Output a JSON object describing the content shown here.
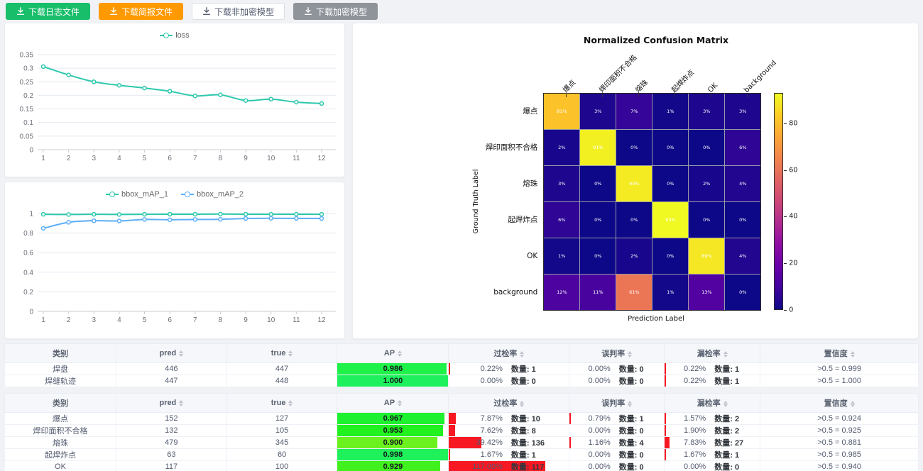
{
  "toolbar": {
    "buttons": [
      {
        "label": "下载日志文件",
        "style": "success",
        "icon": "download-icon"
      },
      {
        "label": "下载简报文件",
        "style": "warning",
        "icon": "download-icon"
      },
      {
        "label": "下载非加密模型",
        "style": "default",
        "icon": "download-icon"
      },
      {
        "label": "下载加密模型",
        "style": "gray",
        "icon": "download-icon"
      }
    ]
  },
  "colors": {
    "teal": "#2dc8ac",
    "blue": "#5caef7",
    "success": "#19be6b",
    "warning": "#ff9900",
    "gray_button": "#8f949b",
    "red_bar": "#f81823",
    "grid_line": "#e4e9f2",
    "axis_line": "#cccccc"
  },
  "chart_data": [
    {
      "type": "line",
      "name": "loss-chart",
      "legend": [
        "loss"
      ],
      "x": [
        1,
        2,
        3,
        4,
        5,
        6,
        7,
        8,
        9,
        10,
        11,
        12
      ],
      "series": [
        {
          "name": "loss",
          "color": "#2dc8ac",
          "values": [
            0.306,
            0.275,
            0.25,
            0.237,
            0.227,
            0.215,
            0.198,
            0.202,
            0.181,
            0.186,
            0.175,
            0.17
          ]
        }
      ],
      "y_ticks": [
        0,
        0.05,
        0.1,
        0.15,
        0.2,
        0.25,
        0.3,
        0.35
      ],
      "ylim": [
        0,
        0.35
      ],
      "grid": true,
      "legend_position": "top"
    },
    {
      "type": "line",
      "name": "map-chart",
      "legend": [
        "bbox_mAP_1",
        "bbox_mAP_2"
      ],
      "x": [
        1,
        2,
        3,
        4,
        5,
        6,
        7,
        8,
        9,
        10,
        11,
        12
      ],
      "series": [
        {
          "name": "bbox_mAP_1",
          "color": "#2dc8ac",
          "values": [
            0.992,
            0.99,
            0.992,
            0.99,
            0.992,
            0.993,
            0.993,
            0.994,
            0.993,
            0.992,
            0.993,
            0.992
          ]
        },
        {
          "name": "bbox_mAP_2",
          "color": "#5caef7",
          "values": [
            0.848,
            0.91,
            0.926,
            0.924,
            0.939,
            0.936,
            0.939,
            0.941,
            0.949,
            0.951,
            0.95,
            0.949
          ]
        }
      ],
      "y_ticks": [
        0,
        0.2,
        0.4,
        0.6,
        0.8,
        1
      ],
      "ylim": [
        0,
        1
      ],
      "grid": true,
      "legend_position": "top"
    },
    {
      "type": "heatmap",
      "name": "confusion-matrix",
      "title": "Normalized Confusion Matrix",
      "xlabel": "Prediction Label",
      "ylabel": "Ground Truth Label",
      "labels": [
        "爆点",
        "焊印面积不合格",
        "熔珠",
        "起焊炸点",
        "OK",
        "background"
      ],
      "matrix": [
        [
          81,
          3,
          7,
          1,
          3,
          3
        ],
        [
          2,
          91,
          0,
          0,
          0,
          6
        ],
        [
          3,
          0,
          90,
          0,
          2,
          4
        ],
        [
          6,
          0,
          0,
          93,
          0,
          0
        ],
        [
          1,
          0,
          2,
          0,
          89,
          4
        ],
        [
          12,
          11,
          61,
          1,
          13,
          0
        ]
      ],
      "unit": "%",
      "vmax": 93,
      "colormap": "plasma",
      "colorbar_ticks": [
        0,
        20,
        40,
        60,
        80
      ]
    }
  ],
  "tables": [
    {
      "headers": [
        {
          "label": "类别",
          "sortable": false
        },
        {
          "label": "pred",
          "sortable": true
        },
        {
          "label": "true",
          "sortable": true
        },
        {
          "label": "AP",
          "sortable": true
        },
        {
          "label": "过检率",
          "sortable": true
        },
        {
          "label": "误判率",
          "sortable": true
        },
        {
          "label": "漏检率",
          "sortable": true
        },
        {
          "label": "置信度",
          "sortable": true
        }
      ],
      "rows": [
        {
          "category": "焊盘",
          "pred": "446",
          "true": "447",
          "ap": 0.986,
          "ap_label": "0.986",
          "over": {
            "pct": "0.22%",
            "count": "数量: 1",
            "rate": 0.22
          },
          "mis": {
            "pct": "0.00%",
            "count": "数量: 0",
            "rate": 0
          },
          "miss": {
            "pct": "0.22%",
            "count": "数量: 1",
            "rate": 0.22
          },
          "conf": ">0.5 = 0.999"
        },
        {
          "category": "焊缝轨迹",
          "pred": "447",
          "true": "448",
          "ap": 1.0,
          "ap_label": "1.000",
          "over": {
            "pct": "0.00%",
            "count": "数量: 0",
            "rate": 0
          },
          "mis": {
            "pct": "0.00%",
            "count": "数量: 0",
            "rate": 0
          },
          "miss": {
            "pct": "0.22%",
            "count": "数量: 1",
            "rate": 0.22
          },
          "conf": ">0.5 = 1.000"
        }
      ]
    },
    {
      "headers": [
        {
          "label": "类别",
          "sortable": false
        },
        {
          "label": "pred",
          "sortable": true
        },
        {
          "label": "true",
          "sortable": true
        },
        {
          "label": "AP",
          "sortable": true
        },
        {
          "label": "过检率",
          "sortable": true
        },
        {
          "label": "误判率",
          "sortable": true
        },
        {
          "label": "漏检率",
          "sortable": true
        },
        {
          "label": "置信度",
          "sortable": true
        }
      ],
      "rows": [
        {
          "category": "爆点",
          "pred": "152",
          "true": "127",
          "ap": 0.967,
          "ap_label": "0.967",
          "over": {
            "pct": "7.87%",
            "count": "数量: 10",
            "rate": 7.87
          },
          "mis": {
            "pct": "0.79%",
            "count": "数量: 1",
            "rate": 0.79
          },
          "miss": {
            "pct": "1.57%",
            "count": "数量: 2",
            "rate": 1.57
          },
          "conf": ">0.5 = 0.924"
        },
        {
          "category": "焊印面积不合格",
          "pred": "132",
          "true": "105",
          "ap": 0.953,
          "ap_label": "0.953",
          "over": {
            "pct": "7.62%",
            "count": "数量: 8",
            "rate": 7.62
          },
          "mis": {
            "pct": "0.00%",
            "count": "数量: 0",
            "rate": 0
          },
          "miss": {
            "pct": "1.90%",
            "count": "数量: 2",
            "rate": 1.9
          },
          "conf": ">0.5 = 0.925"
        },
        {
          "category": "熔珠",
          "pred": "479",
          "true": "345",
          "ap": 0.9,
          "ap_label": "0.900",
          "over": {
            "pct": "39.42%",
            "count": "数量: 136",
            "rate": 39.42
          },
          "mis": {
            "pct": "1.16%",
            "count": "数量: 4",
            "rate": 1.16
          },
          "miss": {
            "pct": "7.83%",
            "count": "数量: 27",
            "rate": 7.83
          },
          "conf": ">0.5 = 0.881"
        },
        {
          "category": "起焊炸点",
          "pred": "63",
          "true": "60",
          "ap": 0.998,
          "ap_label": "0.998",
          "over": {
            "pct": "1.67%",
            "count": "数量: 1",
            "rate": 1.67
          },
          "mis": {
            "pct": "0.00%",
            "count": "数量: 0",
            "rate": 0
          },
          "miss": {
            "pct": "1.67%",
            "count": "数量: 1",
            "rate": 1.67
          },
          "conf": ">0.5 = 0.985"
        },
        {
          "category": "OK",
          "pred": "117",
          "true": "100",
          "ap": 0.929,
          "ap_label": "0.929",
          "over": {
            "pct": "117.00%",
            "count": "数量: 117",
            "rate": 117
          },
          "mis": {
            "pct": "0.00%",
            "count": "数量: 0",
            "rate": 0
          },
          "miss": {
            "pct": "0.00%",
            "count": "数量: 0",
            "rate": 0
          },
          "conf": ">0.5 = 0.940"
        }
      ]
    }
  ]
}
